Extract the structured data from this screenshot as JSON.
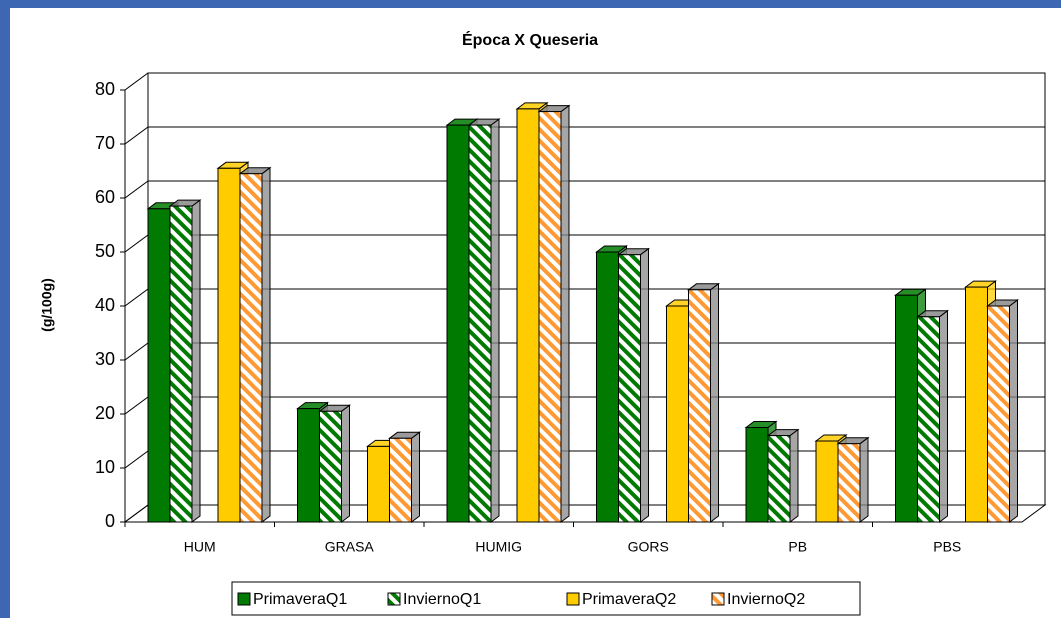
{
  "chart_data": {
    "type": "bar3d",
    "title": "Época X Queseria",
    "y_label": "(g/100g)",
    "categories": [
      "HUM",
      "GRASA",
      "HUMIG",
      "GORS",
      "PB",
      "PBS"
    ],
    "series": [
      {
        "name": "PrimaveraQ1",
        "color": "#007a00",
        "hatched": false,
        "values": [
          58,
          21,
          73.5,
          50,
          17.5,
          42
        ]
      },
      {
        "name": "InviernoQ1",
        "color": "#007a00",
        "hatched": true,
        "values": [
          58.5,
          20.5,
          73.5,
          49.5,
          16,
          38
        ]
      },
      {
        "name": "PrimaveraQ2",
        "color": "#ffcc00",
        "hatched": false,
        "values": [
          65.5,
          14,
          76.5,
          40,
          15,
          43.5
        ]
      },
      {
        "name": "InviernoQ2",
        "color": "#ff9933",
        "hatched": true,
        "values": [
          64.5,
          15.5,
          76,
          43,
          14.5,
          40
        ]
      }
    ],
    "ylim": [
      0,
      80
    ],
    "yticks": [
      0,
      10,
      20,
      30,
      40,
      50,
      60,
      70,
      80
    ],
    "grid": true
  }
}
